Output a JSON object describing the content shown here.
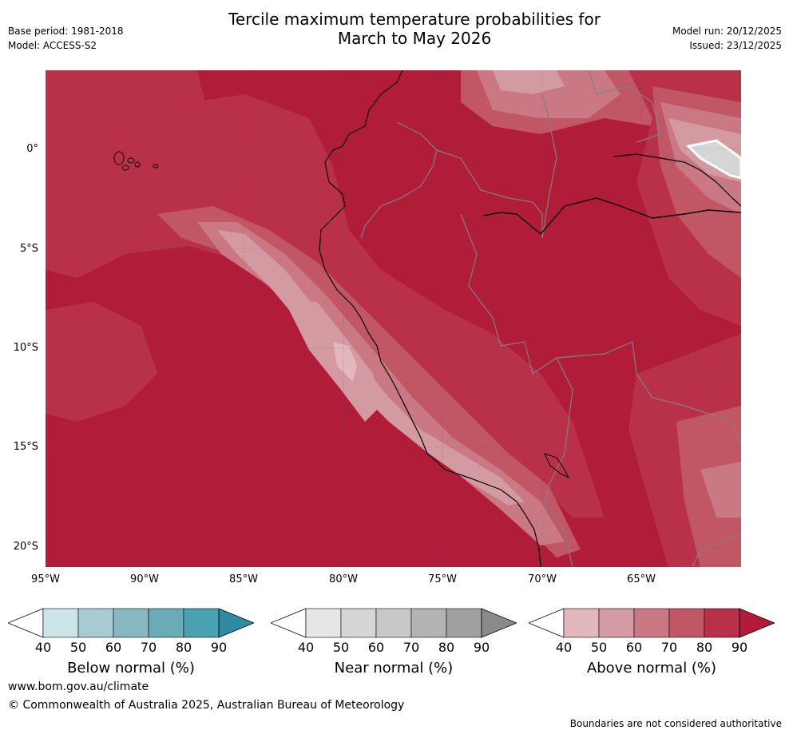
{
  "title": {
    "line1": "Tercile maximum temperature probabilities for",
    "line2": "March to May 2026"
  },
  "meta": {
    "base_period": "Base period: 1981-2018",
    "model": "Model: ACCESS-S2",
    "model_run": "Model run: 20/12/2025",
    "issued": "Issued: 23/12/2025"
  },
  "axes": {
    "lat_labels": [
      "0°",
      "5°S",
      "10°S",
      "15°S",
      "20°S"
    ],
    "lon_labels": [
      "95°W",
      "90°W",
      "85°W",
      "80°W",
      "75°W",
      "70°W",
      "65°W"
    ]
  },
  "colors": {
    "above": [
      "#e2b8be",
      "#d39aa2",
      "#c97884",
      "#c15665",
      "#b93148",
      "#b11d39"
    ],
    "near": [
      "#e6e6e6",
      "#d6d6d6",
      "#c8c8c8",
      "#b4b4b4",
      "#a0a0a0",
      "#8a8a8a"
    ],
    "below": [
      "#cbe4e8",
      "#a8cbd1",
      "#89b8c3",
      "#6aabb7",
      "#4aa1b0",
      "#2f8ba3"
    ]
  },
  "legends": {
    "below": {
      "label": "Below normal (%)",
      "ticks": [
        "40",
        "50",
        "60",
        "70",
        "80",
        "90"
      ]
    },
    "near": {
      "label": "Near normal (%)",
      "ticks": [
        "40",
        "50",
        "60",
        "70",
        "80",
        "90"
      ]
    },
    "above": {
      "label": "Above normal (%)",
      "ticks": [
        "40",
        "50",
        "60",
        "70",
        "80",
        "90"
      ]
    }
  },
  "footer": {
    "url": "www.bom.gov.au/climate",
    "copyright": "© Commonwealth of Australia 2025, Australian Bureau of Meteorology",
    "disclaimer": "Boundaries are not considered authoritative"
  }
}
